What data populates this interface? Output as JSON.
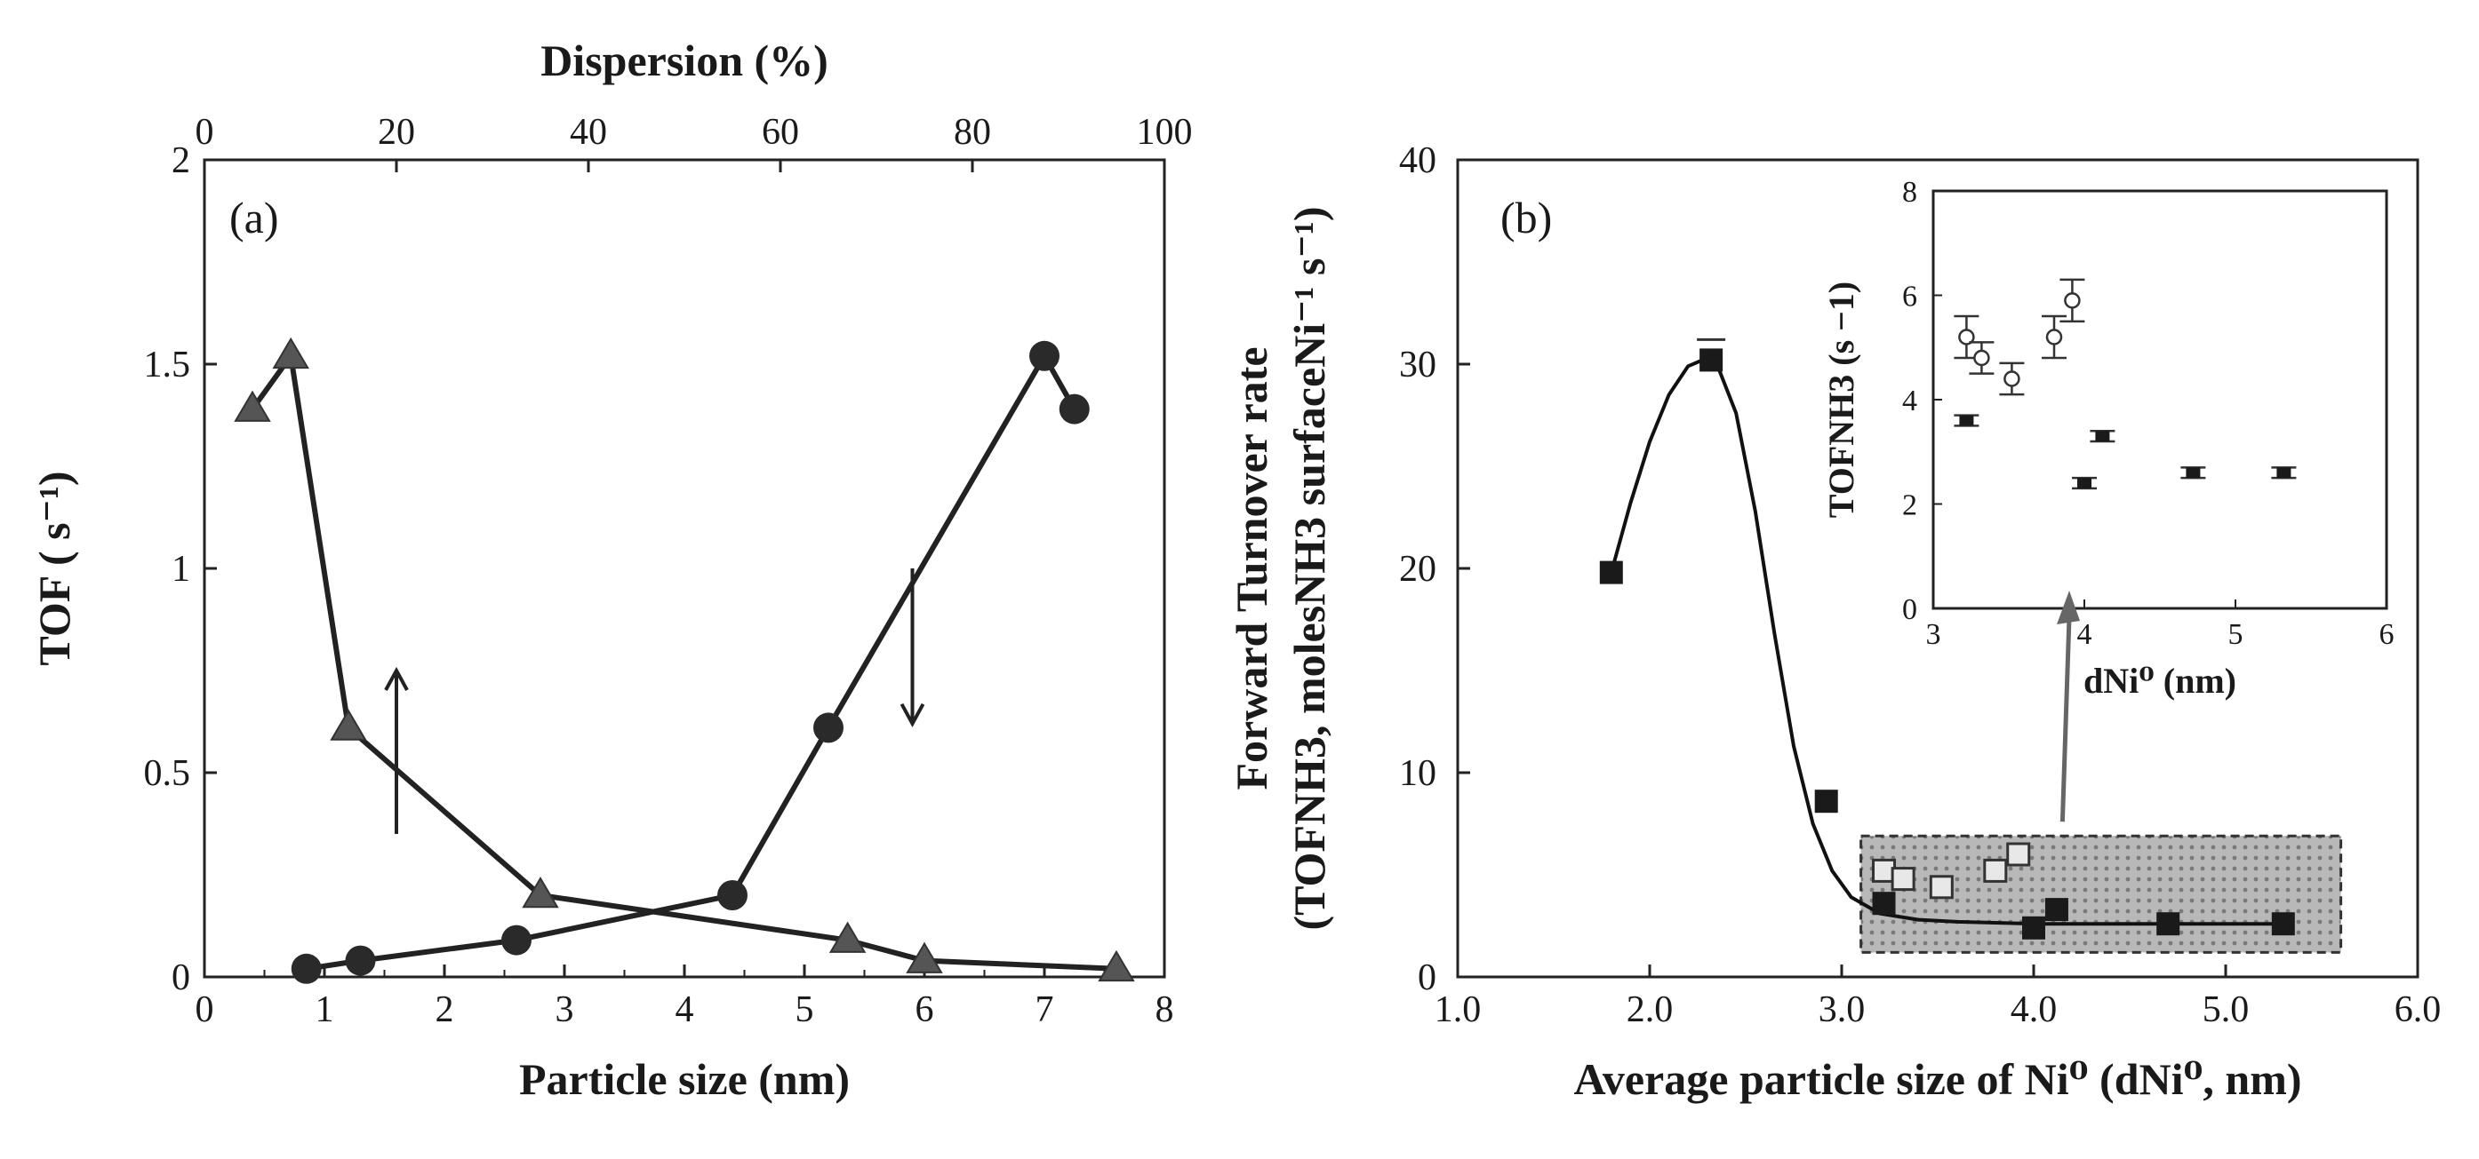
{
  "chart_data": [
    {
      "id": "a",
      "type": "line",
      "panel_label": "(a)",
      "xlabel": "Particle size (nm)",
      "ylabel": "TOF ( s⁻¹)",
      "top_xlabel": "Dispersion (%)",
      "xlim": [
        0,
        8
      ],
      "ylim": [
        0,
        2
      ],
      "top_xlim": [
        0,
        100
      ],
      "x_ticks": [
        "0",
        "1",
        "2",
        "3",
        "4",
        "5",
        "6",
        "7",
        "8"
      ],
      "y_ticks": [
        "0",
        "0.5",
        "1",
        "1.5",
        "2"
      ],
      "top_ticks": [
        "0",
        "20",
        "40",
        "60",
        "80",
        "100"
      ],
      "series": [
        {
          "name": "TOF vs particle size (circles)",
          "marker": "circle",
          "axis": "bottom",
          "x": [
            0.85,
            1.3,
            2.6,
            4.4,
            5.2,
            7.0,
            7.25
          ],
          "y": [
            0.02,
            0.04,
            0.09,
            0.2,
            0.61,
            1.52,
            1.39
          ],
          "arrow": "down"
        },
        {
          "name": "TOF vs dispersion (triangles)",
          "marker": "triangle",
          "axis": "top",
          "x": [
            5,
            9,
            15,
            35,
            67,
            75,
            95
          ],
          "y": [
            1.39,
            1.52,
            0.61,
            0.2,
            0.09,
            0.04,
            0.02
          ],
          "arrow": "up"
        }
      ]
    },
    {
      "id": "b",
      "type": "line",
      "panel_label": "(b)",
      "xlabel": "Average particle size of Ni⁰ (dNi⁰, nm)",
      "ylabel_line1": "Forward Turnover rate",
      "ylabel_line2": "(TOFNH3, molesNH3 surfaceNi⁻¹ s⁻¹)",
      "xlim": [
        1.0,
        6.0
      ],
      "ylim": [
        0,
        40
      ],
      "x_ticks": [
        "1.0",
        "2.0",
        "3.0",
        "4.0",
        "5.0",
        "6.0"
      ],
      "y_ticks": [
        "0",
        "10",
        "20",
        "30",
        "40"
      ],
      "series": [
        {
          "name": "filled squares",
          "marker": "square-filled",
          "x": [
            1.8,
            2.32,
            2.92,
            3.22,
            4.0,
            4.12,
            4.7,
            5.3
          ],
          "y": [
            19.8,
            30.2,
            8.6,
            3.6,
            2.4,
            3.3,
            2.6,
            2.6
          ]
        },
        {
          "name": "open squares",
          "marker": "square-open",
          "x": [
            3.22,
            3.32,
            3.52,
            3.8,
            3.92
          ],
          "y": [
            5.2,
            4.8,
            4.4,
            5.2,
            6.0
          ]
        },
        {
          "name": "fit curve",
          "marker": "none",
          "x": [
            1.8,
            1.9,
            2.0,
            2.1,
            2.2,
            2.3,
            2.35,
            2.45,
            2.55,
            2.65,
            2.75,
            2.85,
            2.95,
            3.05,
            3.2,
            3.4,
            3.6,
            3.8,
            4.0,
            4.5,
            5.0,
            5.3
          ],
          "y": [
            19.8,
            23.2,
            26.2,
            28.5,
            29.9,
            30.3,
            30.0,
            27.6,
            22.8,
            16.8,
            11.3,
            7.5,
            5.2,
            3.9,
            3.1,
            2.8,
            2.7,
            2.65,
            2.6,
            2.6,
            2.6,
            2.6
          ]
        }
      ],
      "highlight_region": {
        "x": [
          3.1,
          5.6
        ],
        "y": [
          1.2,
          6.9
        ]
      }
    },
    {
      "id": "b-inset",
      "type": "scatter",
      "xlabel": "dNi⁰ (nm)",
      "ylabel": "TOFNH3 (s −1)",
      "xlim": [
        3,
        6
      ],
      "ylim": [
        0,
        8
      ],
      "x_ticks": [
        "3",
        "4",
        "5",
        "6"
      ],
      "y_ticks": [
        "0",
        "2",
        "4",
        "6",
        "8"
      ],
      "series": [
        {
          "name": "open circles",
          "marker": "circle-open",
          "x": [
            3.22,
            3.32,
            3.52,
            3.8,
            3.92
          ],
          "y": [
            5.2,
            4.8,
            4.4,
            5.2,
            5.9
          ],
          "err": [
            0.4,
            0.3,
            0.3,
            0.4,
            0.4
          ]
        },
        {
          "name": "filled squares",
          "marker": "square-filled",
          "x": [
            3.22,
            4.0,
            4.12,
            4.72,
            5.32
          ],
          "y": [
            3.6,
            2.4,
            3.3,
            2.6,
            2.6
          ],
          "err": [
            0.1,
            0.1,
            0.1,
            0.1,
            0.1
          ]
        }
      ]
    }
  ]
}
